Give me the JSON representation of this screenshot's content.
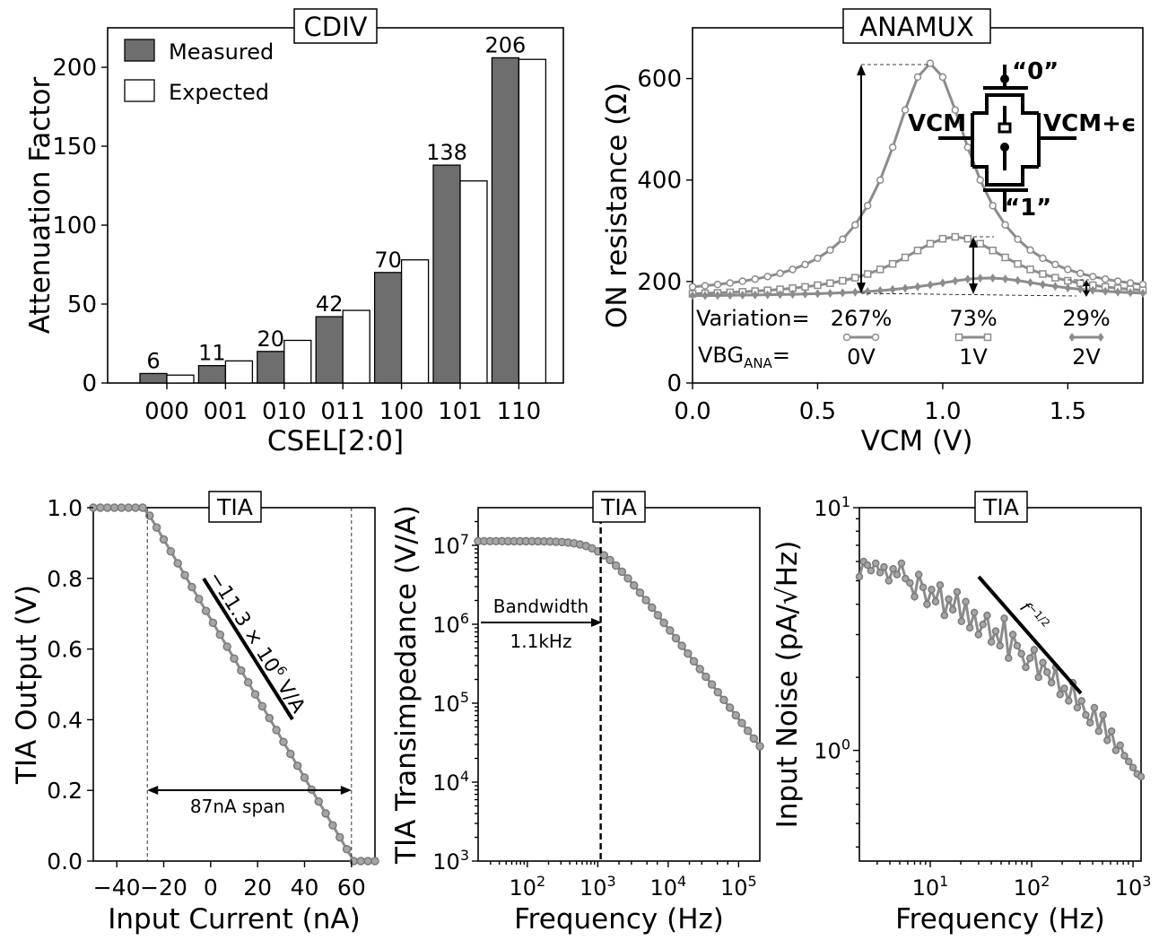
{
  "chart_data": [
    {
      "id": "cdiv",
      "type": "bar",
      "title": "CDIV",
      "xlabel": "CSEL[2:0]",
      "ylabel": "Attenuation Factor",
      "categories": [
        "000",
        "001",
        "010",
        "011",
        "100",
        "101",
        "110"
      ],
      "series": [
        {
          "name": "Measured",
          "values": [
            6,
            11,
            20,
            42,
            70,
            138,
            206
          ]
        },
        {
          "name": "Expected",
          "values": [
            5,
            14,
            27,
            46,
            78,
            128,
            205
          ]
        }
      ],
      "bar_labels": [
        "6",
        "11",
        "20",
        "42",
        "70",
        "138",
        "206"
      ],
      "ylim": [
        0,
        225
      ],
      "yticks": [
        0,
        50,
        100,
        150,
        200
      ],
      "legend": "top-left",
      "grid": false
    },
    {
      "id": "anamux",
      "type": "line",
      "title": "ANAMUX",
      "xlabel": "VCM (V)",
      "ylabel": "ON resistance (Ω)",
      "xlim": [
        0,
        1.8
      ],
      "ylim": [
        0,
        700
      ],
      "xticks": [
        0.0,
        0.5,
        1.0,
        1.5
      ],
      "xtick_labels": [
        "0.0",
        "0.5",
        "1.0",
        "1.5"
      ],
      "yticks": [
        0,
        200,
        400,
        600
      ],
      "series": [
        {
          "vbg": "0V",
          "marker": "circle",
          "peak_vcm": 0.95,
          "peak": 630,
          "base": 170,
          "halfwidth": 0.2
        },
        {
          "vbg": "1V",
          "marker": "square",
          "peak_vcm": 1.05,
          "peak": 288,
          "base": 168,
          "halfwidth": 0.28
        },
        {
          "vbg": "2V",
          "marker": "diamond",
          "peak_vcm": 1.18,
          "peak": 207,
          "base": 170,
          "halfwidth": 0.3
        }
      ],
      "variation_label": "Variation=",
      "vbg_label": "VBG",
      "vbg_sub": "ANA",
      "vbg_eq": "=",
      "variations": [
        "267%",
        "73%",
        "29%"
      ],
      "vbg_values": [
        "0V",
        "1V",
        "2V"
      ],
      "inset": {
        "top": "“0”",
        "bottom": "“1”",
        "left": "VCM",
        "right": "VCM+ϵ"
      },
      "grid": false
    },
    {
      "id": "tia_dc",
      "type": "line",
      "title": "TIA",
      "xlabel": "Input Current (nA)",
      "ylabel": "TIA Output (V)",
      "xlim": [
        -50,
        70
      ],
      "ylim": [
        0,
        1.0
      ],
      "xticks": [
        -40,
        -20,
        0,
        20,
        40,
        60
      ],
      "xtick_labels": [
        "−40",
        "−20",
        "0",
        "20",
        "40",
        "60"
      ],
      "yticks": [
        0.0,
        0.2,
        0.4,
        0.6,
        0.8,
        1.0
      ],
      "ytick_labels": [
        "0.0",
        "0.2",
        "0.4",
        "0.6",
        "0.8",
        "1.0"
      ],
      "slope_label": "−11.3 × 10",
      "slope_exp": "6",
      "slope_unit": " V/A",
      "span_label": "87nA span",
      "span": [
        -27,
        60
      ],
      "knee_low": -28,
      "knee_high": 61,
      "grid": false
    },
    {
      "id": "tia_ac",
      "type": "line",
      "title": "TIA",
      "xlabel": "Frequency (Hz)",
      "ylabel": "TIA Transimpedance (V/A)",
      "x_scale": "log",
      "y_scale": "log",
      "xlim": [
        20,
        200000
      ],
      "ylim": [
        1000,
        30000000
      ],
      "x_ticks": [
        100,
        1000,
        10000,
        100000
      ],
      "x_tick_labels": [
        [
          "10",
          "2"
        ],
        [
          "10",
          "3"
        ],
        [
          "10",
          "4"
        ],
        [
          "10",
          "5"
        ]
      ],
      "y_ticks": [
        1000,
        10000,
        100000,
        1000000,
        10000000
      ],
      "y_tick_labels": [
        [
          "10",
          "3"
        ],
        [
          "10",
          "4"
        ],
        [
          "10",
          "5"
        ],
        [
          "10",
          "6"
        ],
        [
          "10",
          "7"
        ]
      ],
      "dc_gain": 11300000,
      "f3db_hz": 1100,
      "bw_label": "Bandwidth",
      "bw_value": "1.1kHz",
      "grid": false
    },
    {
      "id": "tia_noise",
      "type": "line",
      "title": "TIA",
      "xlabel": "Frequency (Hz)",
      "ylabel": "Input Noise (pA/√Hz)",
      "x_scale": "log",
      "y_scale": "log",
      "xlim": [
        2,
        1200
      ],
      "ylim": [
        0.35,
        10
      ],
      "x_ticks": [
        10,
        100,
        1000
      ],
      "x_tick_labels": [
        [
          "10",
          "1"
        ],
        [
          "10",
          "2"
        ],
        [
          "10",
          "3"
        ]
      ],
      "y_ticks": [
        1,
        10
      ],
      "y_tick_labels": [
        [
          "10",
          "0"
        ],
        [
          "10",
          "1"
        ]
      ],
      "slope_label": "f",
      "slope_exp": "−1/2",
      "x": [
        2.0,
        2.2,
        2.4,
        2.6,
        2.9,
        3.2,
        3.5,
        3.9,
        4.3,
        4.7,
        5.2,
        5.7,
        6.3,
        7.0,
        7.7,
        8.5,
        9.3,
        10.3,
        11.3,
        12.5,
        13.8,
        15.2,
        16.7,
        18.4,
        20.3,
        22.4,
        24.6,
        27.2,
        29.9,
        33.0,
        36.4,
        40.1,
        44.2,
        48.7,
        53.7,
        59.2,
        65.3,
        72.0,
        79.3,
        87.5,
        96.4,
        106,
        117,
        129,
        142,
        157,
        173,
        191,
        210,
        232,
        255,
        282,
        311,
        342,
        377,
        416,
        459,
        506,
        557,
        614,
        677,
        747,
        823,
        907,
        1000,
        1100,
        1200
      ],
      "y": [
        5.2,
        6.0,
        5.8,
        5.5,
        5.9,
        5.4,
        5.7,
        5.0,
        5.6,
        5.3,
        5.9,
        5.1,
        4.9,
        4.3,
        5.3,
        4.7,
        4.0,
        4.6,
        4.1,
        4.8,
        3.6,
        4.2,
        3.8,
        4.5,
        3.4,
        4.1,
        3.2,
        3.7,
        3.0,
        3.3,
        3.6,
        2.8,
        3.1,
        2.7,
        3.5,
        2.4,
        3.0,
        2.7,
        2.5,
        2.2,
        2.4,
        2.6,
        2.0,
        2.3,
        2.1,
        1.9,
        2.2,
        1.7,
        1.8,
        1.6,
        1.9,
        1.5,
        1.6,
        1.4,
        1.3,
        1.5,
        1.2,
        1.4,
        1.1,
        1.2,
        1.0,
        1.05,
        0.95,
        0.9,
        0.85,
        0.8,
        0.78
      ],
      "grid": false
    }
  ]
}
